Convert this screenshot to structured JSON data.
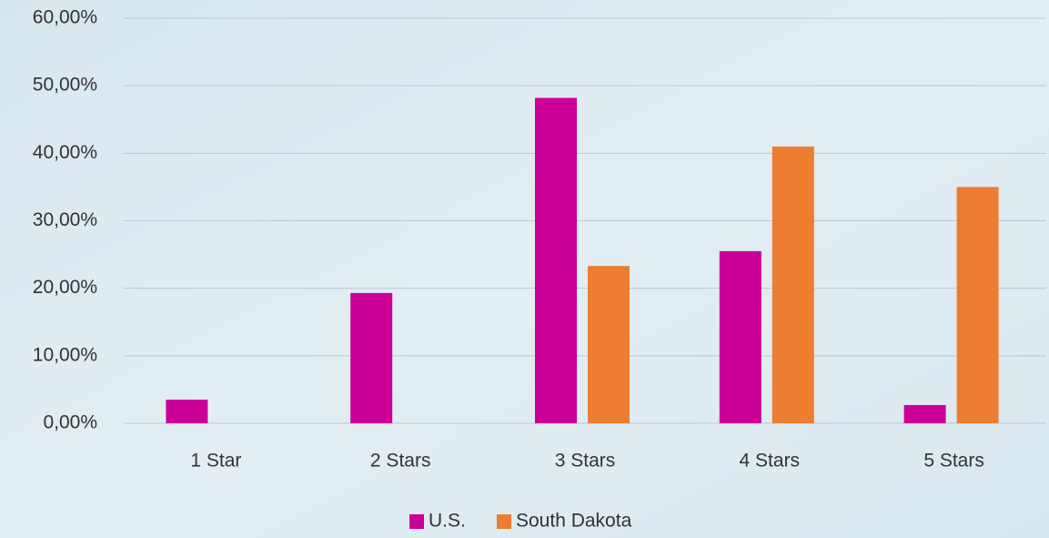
{
  "chart_data": {
    "type": "bar",
    "categories": [
      "1 Star",
      "2 Stars",
      "3 Stars",
      "4 Stars",
      "5 Stars"
    ],
    "series": [
      {
        "name": "U.S.",
        "color": "#cc0099",
        "values": [
          3.5,
          19.3,
          48.2,
          25.5,
          2.7
        ]
      },
      {
        "name": "South Dakota",
        "color": "#ed7d31",
        "values": [
          0,
          0,
          23.3,
          41.0,
          35.0
        ]
      }
    ],
    "ylim": [
      0,
      60
    ],
    "yticks": [
      {
        "value": 0,
        "label": "0,00%"
      },
      {
        "value": 10,
        "label": "10,00%"
      },
      {
        "value": 20,
        "label": "20,00%"
      },
      {
        "value": 30,
        "label": "30,00%"
      },
      {
        "value": 40,
        "label": "40,00%"
      },
      {
        "value": 50,
        "label": "50,00%"
      },
      {
        "value": 60,
        "label": "60,00%"
      }
    ],
    "grid": true,
    "legend": "bottom"
  }
}
